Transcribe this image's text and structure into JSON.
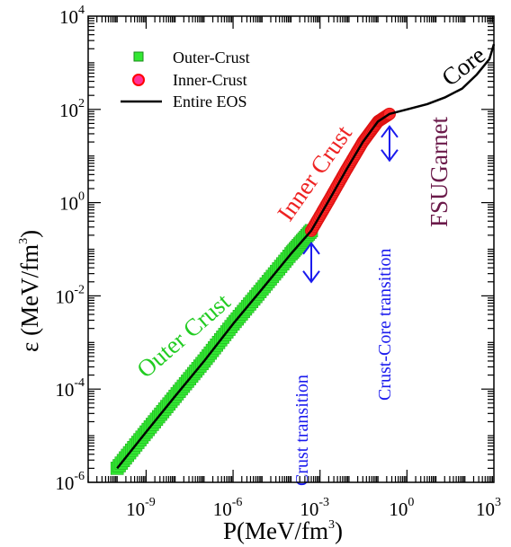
{
  "chart_data": {
    "type": "line",
    "title": "",
    "xlabel": "P(MeV/fm3)",
    "ylabel": "ε (MeV/fm3)",
    "x_scale": "log",
    "y_scale": "log",
    "xlim": [
      1e-11,
      1000
    ],
    "ylim": [
      1e-06,
      10000
    ],
    "grid": false,
    "legend_position": "top-left",
    "x_ticks": [
      {
        "base": "10",
        "exp": "-9",
        "value": 1e-09
      },
      {
        "base": "10",
        "exp": "-6",
        "value": 1e-06
      },
      {
        "base": "10",
        "exp": "-3",
        "value": 0.001
      },
      {
        "base": "10",
        "exp": "0",
        "value": 1
      },
      {
        "base": "10",
        "exp": "3",
        "value": 1000
      }
    ],
    "y_ticks": [
      {
        "base": "10",
        "exp": "-6",
        "value": 1e-06
      },
      {
        "base": "10",
        "exp": "-4",
        "value": 0.0001
      },
      {
        "base": "10",
        "exp": "-2",
        "value": 0.01
      },
      {
        "base": "10",
        "exp": "0",
        "value": 1
      },
      {
        "base": "10",
        "exp": "2",
        "value": 100
      },
      {
        "base": "10",
        "exp": "4",
        "value": 10000
      }
    ],
    "axis_titles": {
      "x_main": "P(MeV/fm",
      "x_sup": "3",
      "x_close": ")",
      "y_symbol": "ε",
      "y_main": " (MeV/fm",
      "y_sup": "3",
      "y_close": ")"
    },
    "series": [
      {
        "name": "Outer-Crust",
        "color": "#33e833",
        "marker": "square",
        "x": [
          1e-10,
          1e-09,
          1e-08,
          1e-07,
          1e-06,
          1e-05,
          0.0001,
          0.0005
        ],
        "y": [
          2e-06,
          1.2e-05,
          7e-05,
          0.0004,
          0.0025,
          0.014,
          0.08,
          0.25
        ]
      },
      {
        "name": "Inner-Crust",
        "color": "#ff2b2b",
        "marker": "circle",
        "x": [
          0.0005,
          0.002,
          0.008,
          0.03,
          0.1,
          0.25
        ],
        "y": [
          0.25,
          1.1,
          5,
          20,
          55,
          80
        ]
      },
      {
        "name": "Entire EOS",
        "color": "#000000",
        "marker": "none",
        "x": [
          1e-10,
          1e-09,
          1e-08,
          1e-07,
          1e-06,
          1e-05,
          0.0001,
          0.0005,
          0.002,
          0.008,
          0.03,
          0.1,
          0.25,
          1,
          5,
          20,
          80,
          250,
          700,
          1000
        ],
        "y": [
          2e-06,
          1.2e-05,
          7e-05,
          0.0004,
          0.0025,
          0.014,
          0.08,
          0.25,
          1.1,
          5,
          20,
          55,
          80,
          100,
          130,
          180,
          280,
          550,
          1200,
          2500
        ]
      }
    ],
    "annotations": {
      "outer_crust": "Outer Crust",
      "inner_crust": "Inner Crust",
      "core": "Core",
      "model": "FSUGarnet",
      "crust_transition": "Crust transition",
      "crust_core_transition": "Crust-Core transition"
    },
    "annotation_colors": {
      "outer_crust": "#22cc22",
      "inner_crust": "#ee2222",
      "core": "#000000",
      "model": "#6b1a4a",
      "arrows": "#1a1aee"
    },
    "transition_points": {
      "crust_transition": {
        "x": 0.0005,
        "y_top": 0.25,
        "y_bottom": 0.02
      },
      "crust_core_transition": {
        "x": 0.25,
        "y_top": 80,
        "y_bottom": 8
      }
    }
  }
}
